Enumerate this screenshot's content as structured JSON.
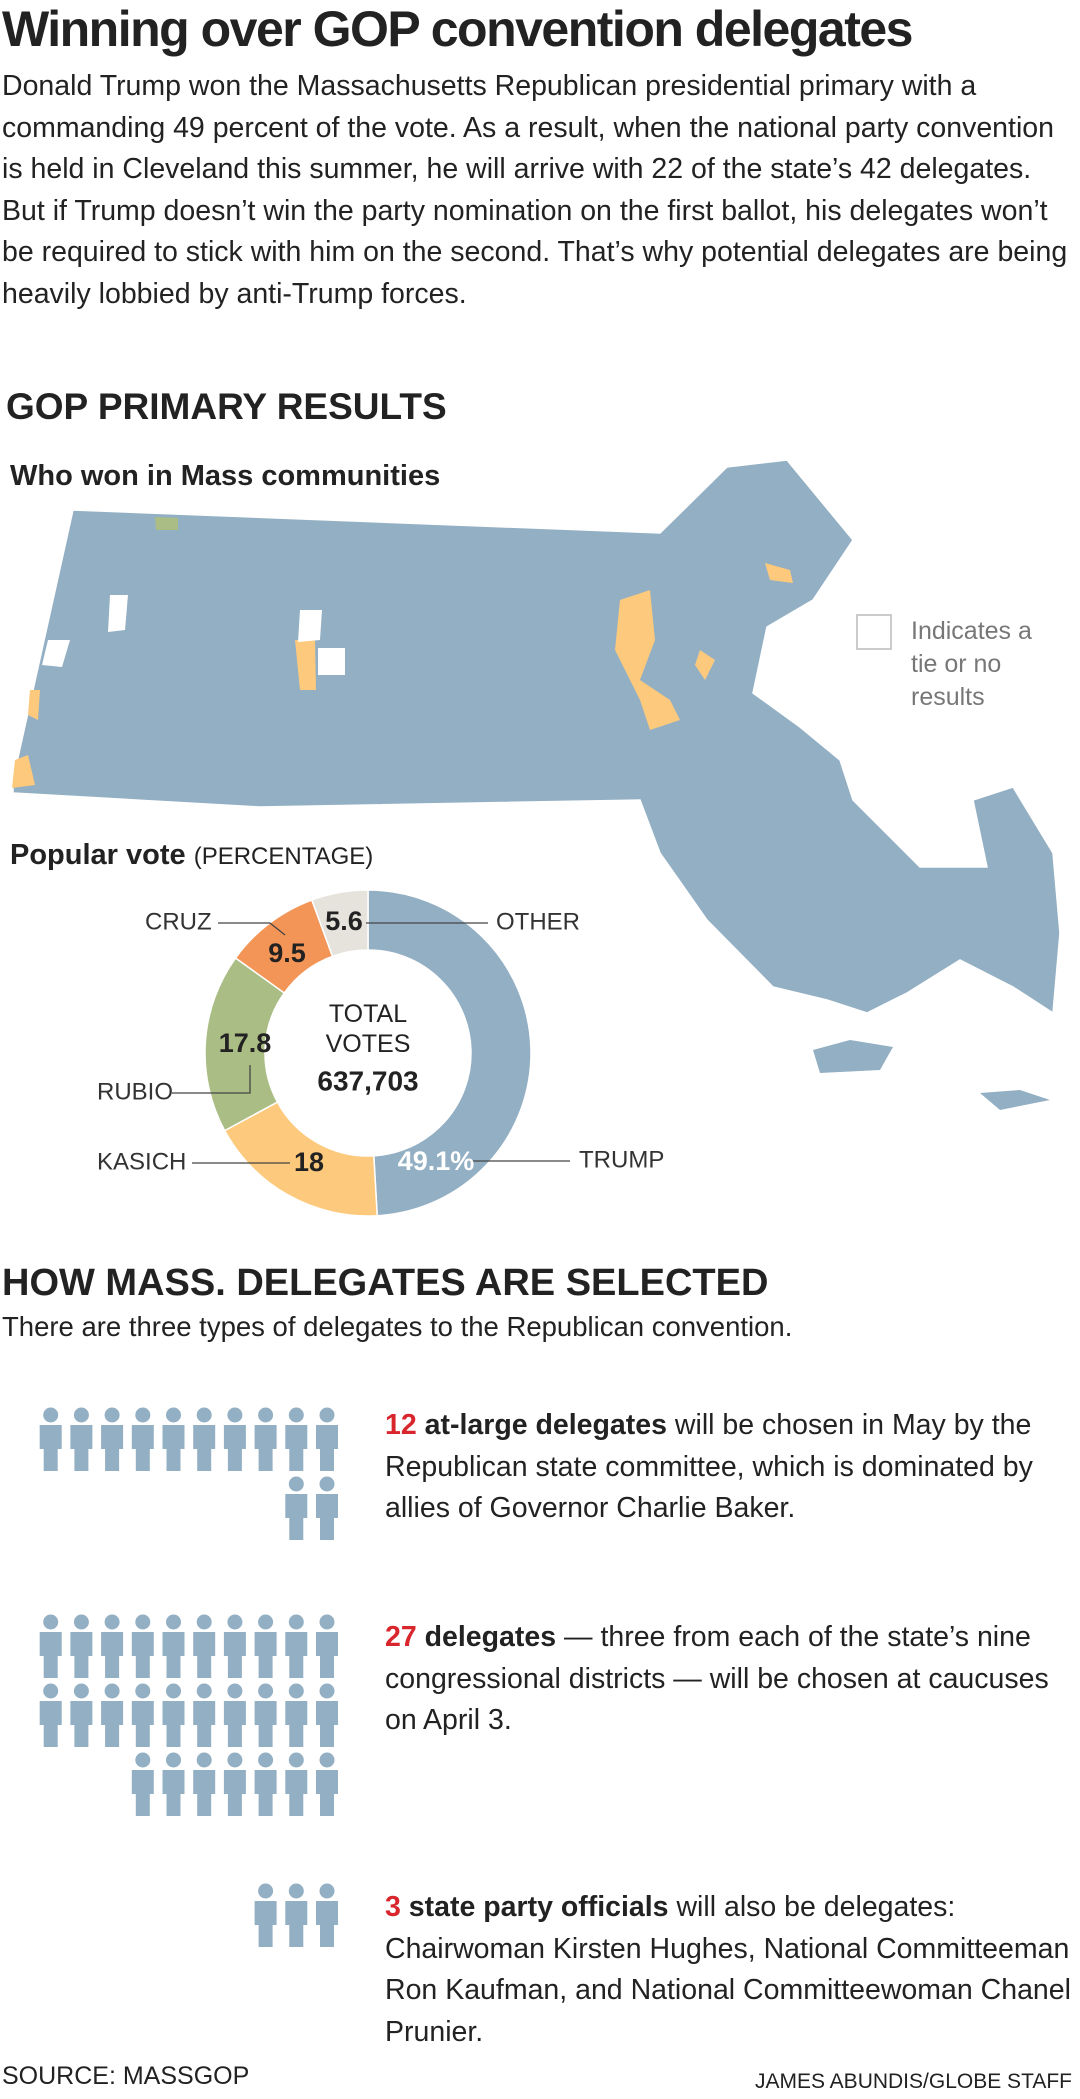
{
  "title": "Winning over GOP convention delegates",
  "intro": "Donald Trump won the Massachusetts Republican presidential primary with a commanding 49 percent of the vote. As a result, when the national party convention is held in Cleveland this summer, he will arrive with 22 of the state’s 42 delegates. But if Trump doesn’t win the party nomination on the first ballot, his delegates won’t be required to stick with him on the second. That’s why potential delegates are being heavily lobbied by anti-Trump forces.",
  "section_title": "GOP PRIMARY RESULTS",
  "map": {
    "title": "Who won in Mass communities",
    "legend": "Indicates a tie or no results"
  },
  "chart_data": {
    "type": "donut",
    "title": "Popular vote",
    "subtitle": "(PERCENTAGE)",
    "center_label": "TOTAL VOTES",
    "total_votes": "637,703",
    "categories": [
      "TRUMP",
      "KASICH",
      "RUBIO",
      "CRUZ",
      "OTHER"
    ],
    "values": [
      49.1,
      18,
      17.8,
      9.5,
      5.6
    ],
    "value_labels": [
      "49.1%",
      "18",
      "17.8",
      "9.5",
      "5.6"
    ],
    "colors": [
      "#93afc3",
      "#fdc97c",
      "#a9bd85",
      "#f39557",
      "#e6e2dc"
    ]
  },
  "delegates": {
    "title": "HOW MASS. DELEGATES ARE SELECTED",
    "subtitle": "There are three types of delegates to the Republican convention.",
    "groups": [
      {
        "count": 12,
        "label": "at-large delegates",
        "text": "will be chosen in May by the Republican state committee, which is dominated by allies of Governor Charlie Baker."
      },
      {
        "count": 27,
        "label": "delegates",
        "text": "— three from each of the state’s nine congressional districts — will be chosen at caucuses on April 3."
      },
      {
        "count": 3,
        "label": "state party officials",
        "text": "will also be delegates: Chairwoman Kirsten Hughes, National Committeeman Ron Kaufman, and National Committeewoman Chanel Prunier."
      }
    ]
  },
  "source": "SOURCE: MASSGOP",
  "credit": "JAMES ABUNDIS/GLOBE STAFF"
}
